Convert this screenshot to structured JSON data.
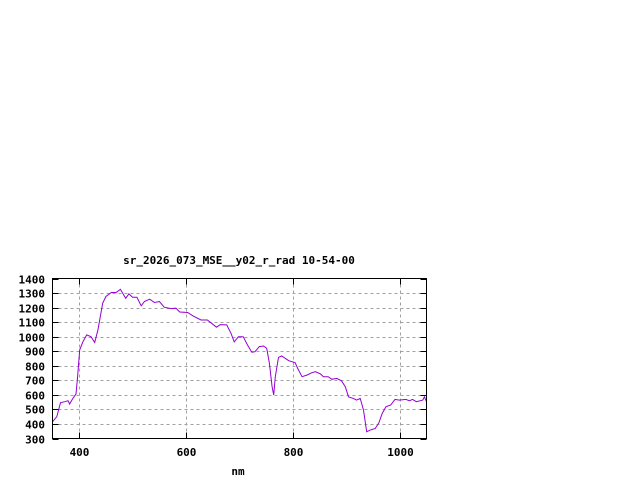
{
  "chart_data": {
    "type": "line",
    "title": "sr_2026_073_MSE__y02_r_rad 10-54-00",
    "xlabel": "nm",
    "ylabel": "",
    "xlim": [
      350,
      1050
    ],
    "ylim": [
      300,
      1400
    ],
    "xticks": [
      400,
      600,
      800,
      1000
    ],
    "yticks": [
      300,
      400,
      500,
      600,
      700,
      800,
      900,
      1000,
      1100,
      1200,
      1300,
      1400
    ],
    "grid": true,
    "line_color": "#9400d3",
    "series": [
      {
        "x": [
          350,
          358,
          365,
          373,
          379,
          382,
          388,
          394,
          397,
          401,
          407,
          414,
          422,
          429,
          435,
          444,
          450,
          460,
          469,
          477,
          487,
          493,
          500,
          508,
          516,
          522,
          532,
          541,
          550,
          559,
          572,
          581,
          588,
          603,
          613,
          628,
          640,
          657,
          664,
          676,
          684,
          690,
          698,
          707,
          715,
          723,
          729,
          737,
          745,
          751,
          756,
          761,
          764,
          767,
          773,
          779,
          792,
          804,
          809,
          817,
          826,
          835,
          842,
          852,
          857,
          866,
          873,
          882,
          891,
          898,
          904,
          913,
          919,
          926,
          932,
          938,
          944,
          954,
          961,
          967,
          974,
          983,
          991,
          999,
          1011,
          1018,
          1024,
          1031,
          1043,
          1046,
          1050
        ],
        "y": [
          415,
          450,
          546,
          553,
          560,
          537,
          575,
          605,
          725,
          909,
          966,
          1012,
          1000,
          960,
          1046,
          1230,
          1276,
          1304,
          1304,
          1326,
          1264,
          1294,
          1271,
          1271,
          1212,
          1242,
          1258,
          1235,
          1242,
          1203,
          1193,
          1196,
          1170,
          1166,
          1143,
          1115,
          1115,
          1065,
          1083,
          1081,
          1023,
          964,
          1000,
          1000,
          943,
          893,
          897,
          932,
          936,
          920,
          817,
          656,
          599,
          725,
          858,
          867,
          835,
          821,
          782,
          725,
          736,
          752,
          759,
          743,
          725,
          725,
          707,
          713,
          697,
          656,
          587,
          576,
          564,
          576,
          495,
          346,
          357,
          369,
          408,
          472,
          518,
          530,
          569,
          564,
          569,
          560,
          569,
          553,
          564,
          587,
          553
        ]
      }
    ]
  }
}
